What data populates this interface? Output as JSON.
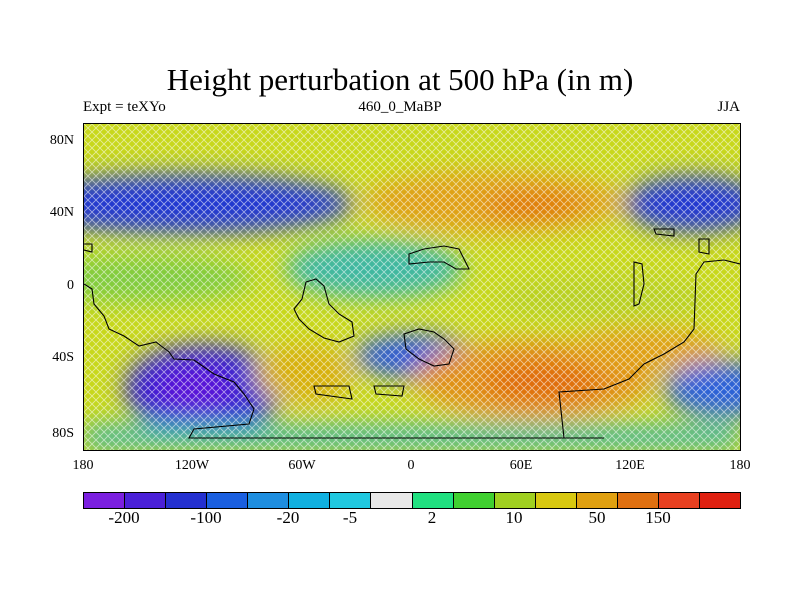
{
  "title": "Height perturbation at 500 hPa (in m)",
  "subtitle_left": "Expt = teXYo",
  "subtitle_center": "460_0_MaBP",
  "subtitle_right": "JJA",
  "lat_labels": [
    "80N",
    "40N",
    "0",
    "40S",
    "80S"
  ],
  "lon_labels": [
    "180",
    "120W",
    "60W",
    "0",
    "60E",
    "120E",
    "180"
  ],
  "colorbar": {
    "colors": [
      "#7b1fe0",
      "#4a20d8",
      "#2430d0",
      "#1a5fe0",
      "#1e8ee0",
      "#10b0e0",
      "#20c8e0",
      "#e8e8e8",
      "#20e080",
      "#40d030",
      "#a0d020",
      "#d8c810",
      "#e0a010",
      "#e07010",
      "#e84020",
      "#e02010"
    ],
    "labels": [
      "-200",
      "-100",
      "-20",
      "-5",
      "2",
      "10",
      "50",
      "150"
    ]
  },
  "map_regions": [
    {
      "name": "siberian-arctic-low",
      "tone": "blue",
      "lon": 160,
      "lat": 52
    },
    {
      "name": "north-pacific-atlantic-low",
      "tone": "blue",
      "lon": -120,
      "lat": 52
    },
    {
      "name": "eurasian-high",
      "tone": "orange",
      "lon": 40,
      "lat": 50
    },
    {
      "name": "south-pacific-low",
      "tone": "purple",
      "lon": -130,
      "lat": -55
    },
    {
      "name": "south-atlantic-indian-high",
      "tone": "orange",
      "lon": 50,
      "lat": -55
    },
    {
      "name": "australian-high",
      "tone": "orange",
      "lon": 120,
      "lat": -35
    }
  ]
}
